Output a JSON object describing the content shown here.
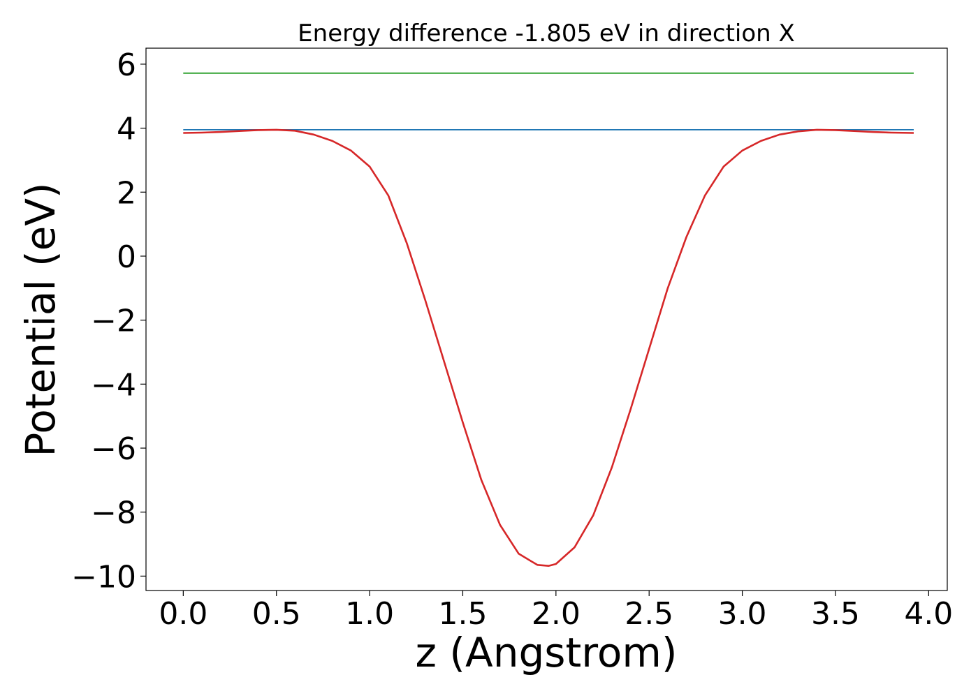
{
  "chart_data": {
    "type": "line",
    "title": "Energy difference -1.805 eV in direction X",
    "xlabel": "z (Angstrom)",
    "ylabel": "Potential (eV)",
    "xlim": [
      -0.2,
      4.1
    ],
    "ylim": [
      -10.45,
      6.5
    ],
    "xticks": [
      0.0,
      0.5,
      1.0,
      1.5,
      2.0,
      2.5,
      3.0,
      3.5,
      4.0
    ],
    "xtick_labels": [
      "0.0",
      "0.5",
      "1.0",
      "1.5",
      "2.0",
      "2.5",
      "3.0",
      "3.5",
      "4.0"
    ],
    "yticks": [
      6,
      4,
      2,
      0,
      -2,
      -4,
      -6,
      -8,
      -10
    ],
    "ytick_labels": [
      "6",
      "4",
      "2",
      "0",
      "−2",
      "−4",
      "−6",
      "−8",
      "−10"
    ],
    "grid": false,
    "series": [
      {
        "color": "#2ca02c",
        "x": [
          0.0,
          3.92
        ],
        "y": [
          5.72,
          5.72
        ]
      },
      {
        "color": "#1f77b4",
        "x": [
          0.0,
          3.92
        ],
        "y": [
          3.95,
          3.95
        ]
      },
      {
        "color": "#d62728",
        "x": [
          0.0,
          0.1,
          0.2,
          0.3,
          0.4,
          0.5,
          0.6,
          0.7,
          0.8,
          0.9,
          1.0,
          1.1,
          1.2,
          1.3,
          1.4,
          1.5,
          1.6,
          1.7,
          1.8,
          1.9,
          1.96,
          2.0,
          2.1,
          2.2,
          2.3,
          2.4,
          2.5,
          2.6,
          2.7,
          2.8,
          2.9,
          3.0,
          3.1,
          3.2,
          3.3,
          3.4,
          3.5,
          3.6,
          3.7,
          3.8,
          3.92
        ],
        "y": [
          3.85,
          3.86,
          3.88,
          3.91,
          3.94,
          3.95,
          3.92,
          3.8,
          3.6,
          3.3,
          2.8,
          1.9,
          0.4,
          -1.4,
          -3.3,
          -5.2,
          -7.0,
          -8.4,
          -9.3,
          -9.65,
          -9.68,
          -9.62,
          -9.1,
          -8.1,
          -6.6,
          -4.8,
          -2.9,
          -1.0,
          0.6,
          1.9,
          2.8,
          3.3,
          3.6,
          3.8,
          3.9,
          3.95,
          3.94,
          3.91,
          3.88,
          3.86,
          3.85
        ]
      }
    ]
  }
}
